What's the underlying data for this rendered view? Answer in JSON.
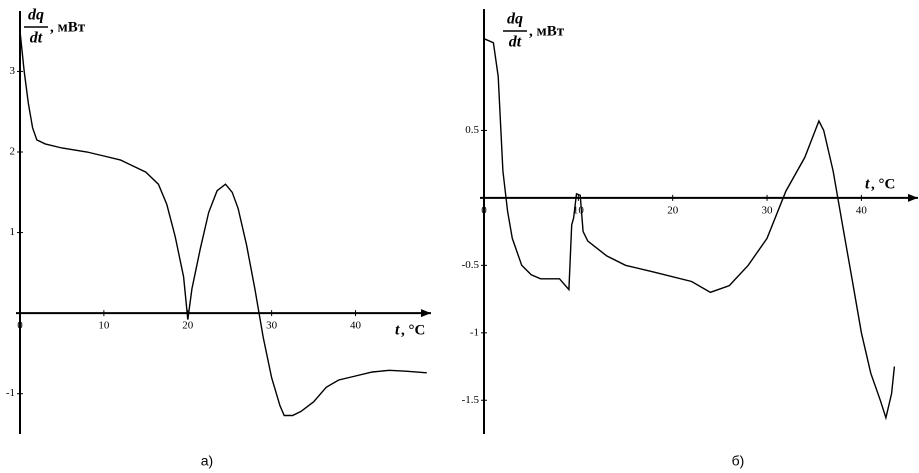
{
  "chart_data": [
    {
      "type": "line",
      "caption": "а)",
      "y_label_top": "dq",
      "y_label_bottom": "dt",
      "y_unit": ", мВт",
      "x_label": "t",
      "x_unit": ", °C",
      "xlim": [
        0,
        49
      ],
      "ylim": [
        -1.5,
        3.75
      ],
      "xticks": [
        0,
        10,
        20,
        30,
        40
      ],
      "yticks": [
        -1,
        1,
        2,
        3
      ],
      "color": "#000000",
      "x": [
        0,
        0.5,
        1,
        1.5,
        2,
        3,
        5,
        8,
        10,
        12,
        15,
        16.5,
        17.5,
        18.5,
        19.5,
        20,
        20.5,
        21.5,
        22.5,
        23.5,
        24.5,
        25.3,
        26,
        27,
        28,
        29,
        30,
        31,
        31.5,
        32.5,
        33.5,
        35,
        36.5,
        38,
        40,
        42,
        44,
        46,
        48.5
      ],
      "values": [
        3.5,
        3.0,
        2.6,
        2.3,
        2.15,
        2.1,
        2.05,
        2.0,
        1.95,
        1.9,
        1.75,
        1.6,
        1.35,
        0.95,
        0.45,
        -0.08,
        0.3,
        0.8,
        1.25,
        1.52,
        1.6,
        1.5,
        1.3,
        0.85,
        0.3,
        -0.3,
        -0.8,
        -1.15,
        -1.27,
        -1.27,
        -1.22,
        -1.1,
        -0.92,
        -0.83,
        -0.78,
        -0.73,
        -0.71,
        -0.72,
        -0.74
      ]
    },
    {
      "type": "line",
      "caption": "б)",
      "y_label_top": "dq",
      "y_label_bottom": "dt",
      "y_unit": ", мВт",
      "x_label": "t",
      "x_unit": ", °C",
      "xlim": [
        0,
        46
      ],
      "ylim": [
        -1.75,
        1.4
      ],
      "xticks": [
        0,
        10,
        20,
        30,
        40
      ],
      "yticks": [
        -1.5,
        -1,
        -0.5,
        0.5
      ],
      "color": "#000000",
      "x": [
        0,
        1,
        1.5,
        2,
        2.5,
        3,
        4,
        5,
        6,
        8,
        9,
        9.3,
        9.5,
        9.8,
        10.2,
        10.5,
        11,
        13,
        15,
        18,
        22,
        24,
        26,
        28,
        30,
        32,
        34,
        35.5,
        36,
        37,
        38,
        39,
        40,
        41,
        42,
        42.6,
        43.2,
        43.5
      ],
      "values": [
        1.18,
        1.15,
        0.9,
        0.2,
        -0.1,
        -0.3,
        -0.5,
        -0.57,
        -0.6,
        -0.6,
        -0.68,
        -0.2,
        -0.15,
        0.03,
        0.02,
        -0.25,
        -0.32,
        -0.43,
        -0.5,
        -0.55,
        -0.62,
        -0.7,
        -0.65,
        -0.5,
        -0.3,
        0.05,
        0.3,
        0.57,
        0.5,
        0.2,
        -0.2,
        -0.6,
        -1.0,
        -1.3,
        -1.5,
        -1.63,
        -1.45,
        -1.25
      ]
    }
  ]
}
